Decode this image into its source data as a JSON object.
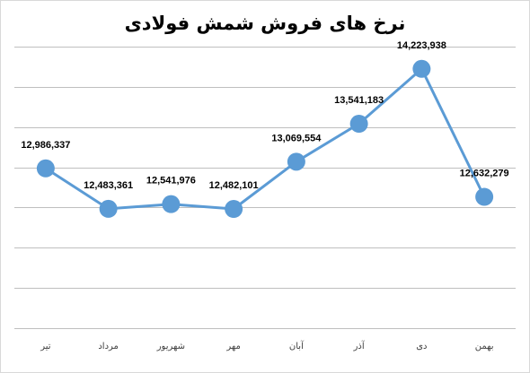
{
  "chart_data": {
    "type": "line",
    "title": "نرخ های فروش شمش فولادی",
    "categories": [
      "تیر",
      "مرداد",
      "شهریور",
      "مهر",
      "آبان",
      "آذر",
      "دی",
      "بهمن"
    ],
    "series": [
      {
        "values": [
          12986337,
          12483361,
          12541976,
          12482101,
          13069554,
          13541183,
          14223938,
          12632279
        ],
        "data_labels": [
          "12,986,337",
          "12,483,361",
          "12,541,976",
          "12,482,101",
          "13,069,554",
          "13,541,183",
          "14,223,938",
          "12,632,279"
        ]
      }
    ],
    "ylim": [
      11000000,
      14500000
    ],
    "grid": true,
    "legend": "none",
    "colors": {
      "series": "#5b9bd5",
      "grid": "#bfbfbf"
    }
  }
}
